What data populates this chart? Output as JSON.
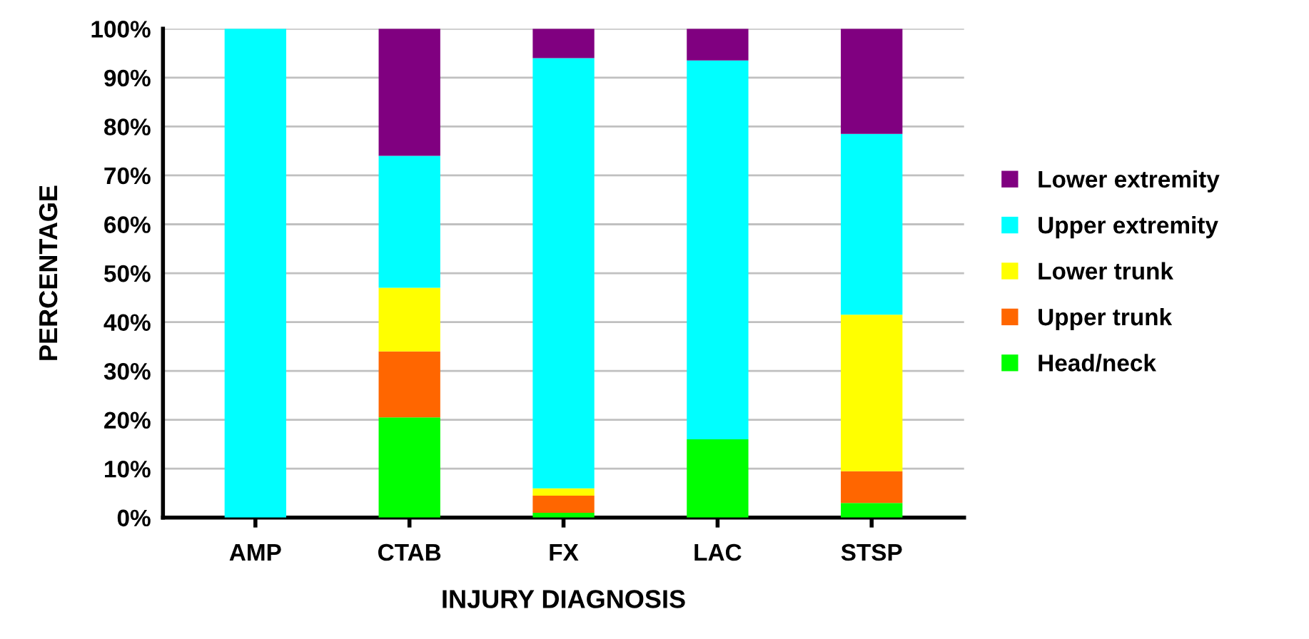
{
  "chart_data": {
    "type": "bar",
    "stacked": true,
    "xlabel": "INJURY DIAGNOSIS",
    "ylabel": "PERCENTAGE",
    "categories": [
      "AMP",
      "CTAB",
      "FX",
      "LAC",
      "STSP"
    ],
    "series": [
      {
        "name": "Head/neck",
        "color": "#00ff00",
        "values": [
          0,
          20.5,
          1,
          16,
          3
        ]
      },
      {
        "name": "Upper trunk",
        "color": "#ff6600",
        "values": [
          0,
          13.5,
          3.5,
          0,
          6.5
        ]
      },
      {
        "name": "Lower trunk",
        "color": "#ffff00",
        "values": [
          0,
          13,
          1.5,
          0,
          32
        ]
      },
      {
        "name": "Upper extremity",
        "color": "#00ffff",
        "values": [
          100,
          27,
          88,
          77.5,
          37
        ]
      },
      {
        "name": "Lower extremity",
        "color": "#800080",
        "values": [
          0,
          26,
          6,
          6.5,
          21.5
        ]
      }
    ],
    "ylim": [
      0,
      100
    ],
    "yticks": [
      {
        "value": 0,
        "label": "0%"
      },
      {
        "value": 10,
        "label": "10%"
      },
      {
        "value": 20,
        "label": "20%"
      },
      {
        "value": 30,
        "label": "30%"
      },
      {
        "value": 40,
        "label": "40%"
      },
      {
        "value": 50,
        "label": "50%"
      },
      {
        "value": 60,
        "label": "60%"
      },
      {
        "value": 70,
        "label": "70%"
      },
      {
        "value": 80,
        "label": "80%"
      },
      {
        "value": 90,
        "label": "90%"
      },
      {
        "value": 100,
        "label": "100%"
      }
    ],
    "grid": "y",
    "legend": "right"
  }
}
